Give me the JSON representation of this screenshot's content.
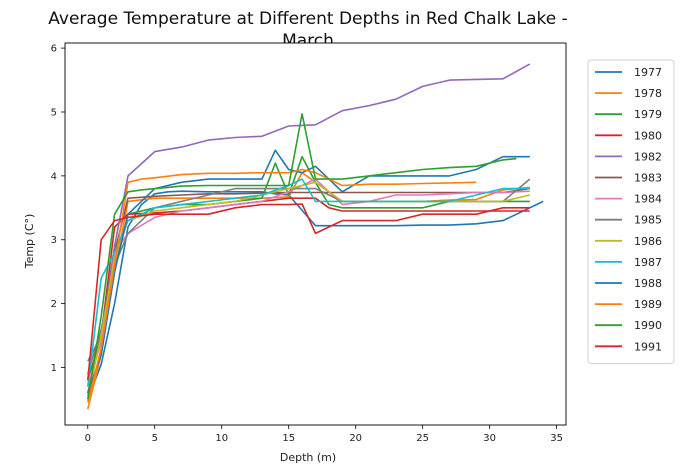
{
  "chart_data": {
    "type": "line",
    "title_line1": "Average Temperature at Different Depths in Red Chalk Lake -",
    "title_line2": "March",
    "xlabel": "Depth (m)",
    "ylabel": "Temp (C°)",
    "xlim": [
      -1.7,
      35.7
    ],
    "ylim": [
      0.1,
      6.08
    ],
    "xticks": [
      0,
      5,
      10,
      15,
      20,
      25,
      30,
      35
    ],
    "yticks": [
      1,
      2,
      3,
      4,
      5,
      6
    ],
    "grid": false,
    "legend_position": "outside-right",
    "series": [
      {
        "name": "1977",
        "color": "#1f77b4",
        "x": [
          0,
          1,
          2,
          3,
          4,
          5,
          6,
          7,
          9,
          11,
          13,
          14,
          15,
          17,
          18,
          19,
          21,
          23,
          25,
          27,
          29,
          31,
          33,
          34
        ],
        "y": [
          0.5,
          1.05,
          2.0,
          3.2,
          3.55,
          3.72,
          3.75,
          3.76,
          3.75,
          3.75,
          3.75,
          3.72,
          3.7,
          3.22,
          3.22,
          3.22,
          3.22,
          3.22,
          3.23,
          3.23,
          3.25,
          3.3,
          3.5,
          3.6
        ]
      },
      {
        "name": "1978",
        "color": "#ff7f0e",
        "x": [
          0,
          1,
          2,
          3,
          5,
          7,
          9,
          11,
          13,
          15,
          16,
          17,
          19,
          21,
          23,
          25,
          27,
          29,
          31,
          33
        ],
        "y": [
          0.35,
          1.2,
          2.5,
          3.6,
          3.65,
          3.65,
          3.65,
          3.65,
          3.65,
          3.67,
          4.05,
          3.9,
          3.6,
          3.6,
          3.6,
          3.6,
          3.62,
          3.63,
          3.78,
          3.82
        ]
      },
      {
        "name": "1979",
        "color": "#2ca02c",
        "x": [
          0,
          1,
          2,
          3,
          4,
          5,
          7,
          9,
          11,
          13,
          14,
          15,
          16,
          17,
          18,
          19,
          21,
          23,
          25,
          27,
          29,
          31,
          33
        ],
        "y": [
          0.55,
          1.5,
          2.5,
          3.4,
          3.45,
          3.5,
          3.55,
          3.55,
          3.6,
          3.65,
          4.2,
          3.7,
          4.3,
          3.9,
          3.55,
          3.5,
          3.5,
          3.5,
          3.5,
          3.6,
          3.6,
          3.6,
          3.6
        ]
      },
      {
        "name": "1980",
        "color": "#d62728",
        "x": [
          0,
          1,
          2,
          3,
          5,
          7,
          9,
          11,
          13,
          15,
          17,
          18,
          19,
          21,
          23,
          25,
          27,
          29,
          31,
          33
        ],
        "y": [
          0.6,
          1.5,
          3.2,
          3.4,
          3.42,
          3.45,
          3.5,
          3.55,
          3.6,
          3.65,
          3.65,
          3.5,
          3.45,
          3.45,
          3.45,
          3.45,
          3.45,
          3.45,
          3.45,
          3.45
        ]
      },
      {
        "name": "1982",
        "color": "#9467bd",
        "x": [
          0,
          1,
          2,
          3,
          5,
          7,
          9,
          11,
          13,
          15,
          17,
          19,
          21,
          23,
          25,
          27,
          29,
          31,
          33
        ],
        "y": [
          1.1,
          1.5,
          2.9,
          4.0,
          4.38,
          4.45,
          4.56,
          4.6,
          4.62,
          4.78,
          4.8,
          5.02,
          5.1,
          5.2,
          5.4,
          5.5,
          5.51,
          5.52,
          5.75
        ]
      },
      {
        "name": "1983",
        "color": "#8c564b",
        "x": [
          0,
          1,
          2,
          3,
          5,
          7,
          9,
          11,
          13,
          15,
          17,
          19,
          21,
          23,
          25,
          27,
          29,
          31,
          33
        ],
        "y": [
          0.8,
          1.5,
          2.8,
          3.65,
          3.68,
          3.7,
          3.72,
          3.72,
          3.73,
          3.74,
          3.74,
          3.74,
          3.74,
          3.74,
          3.74,
          3.74,
          3.74,
          3.74,
          3.8
        ]
      },
      {
        "name": "1984",
        "color": "#e377c2",
        "x": [
          0,
          1,
          2,
          3,
          5,
          7,
          9,
          11,
          13,
          15,
          17,
          19,
          21,
          23,
          25,
          27,
          29,
          31,
          33
        ],
        "y": [
          0.7,
          1.4,
          2.8,
          3.1,
          3.35,
          3.45,
          3.5,
          3.55,
          3.6,
          3.75,
          3.95,
          3.55,
          3.6,
          3.7,
          3.7,
          3.72,
          3.74,
          3.74,
          3.76
        ]
      },
      {
        "name": "1985",
        "color": "#7f7f7f",
        "x": [
          0,
          1,
          2,
          3,
          5,
          7,
          9,
          11,
          13,
          15,
          17,
          19,
          21,
          23,
          25,
          27,
          29,
          31,
          33
        ],
        "y": [
          0.9,
          1.6,
          2.6,
          3.1,
          3.5,
          3.6,
          3.7,
          3.8,
          3.8,
          3.8,
          3.8,
          3.6,
          3.6,
          3.6,
          3.6,
          3.6,
          3.6,
          3.6,
          3.95
        ]
      },
      {
        "name": "1986",
        "color": "#bcbd22",
        "x": [
          0,
          1,
          2,
          3,
          5,
          7,
          9,
          11,
          13,
          15,
          17,
          19,
          21,
          23,
          25,
          27,
          29,
          31,
          33
        ],
        "y": [
          0.55,
          1.5,
          2.7,
          3.3,
          3.45,
          3.5,
          3.55,
          3.6,
          3.7,
          3.8,
          3.9,
          3.6,
          3.6,
          3.6,
          3.6,
          3.6,
          3.6,
          3.6,
          3.7
        ]
      },
      {
        "name": "1987",
        "color": "#17becf",
        "x": [
          0,
          1,
          2,
          3,
          5,
          7,
          9,
          11,
          13,
          15,
          16,
          17,
          18,
          19,
          21,
          23,
          25,
          27,
          29,
          31,
          33
        ],
        "y": [
          0.7,
          2.4,
          2.8,
          3.3,
          3.5,
          3.55,
          3.6,
          3.65,
          3.7,
          3.85,
          3.95,
          3.6,
          3.6,
          3.6,
          3.6,
          3.6,
          3.6,
          3.6,
          3.7,
          3.8,
          3.8
        ]
      },
      {
        "name": "1988",
        "color": "#1f77b4",
        "x": [
          0,
          1,
          2,
          3,
          5,
          7,
          9,
          11,
          13,
          14,
          15,
          16,
          17,
          19,
          21,
          23,
          25,
          27,
          29,
          31,
          33
        ],
        "y": [
          0.6,
          1.2,
          2.5,
          3.4,
          3.8,
          3.9,
          3.95,
          3.95,
          3.95,
          4.4,
          4.1,
          4.05,
          4.15,
          3.75,
          4.0,
          4.0,
          4.0,
          4.0,
          4.1,
          4.3,
          4.3
        ]
      },
      {
        "name": "1989",
        "color": "#ff7f0e",
        "x": [
          0,
          1,
          2,
          3,
          4,
          5,
          7,
          9,
          11,
          13,
          15,
          16,
          17,
          19,
          21,
          23,
          25,
          27,
          29
        ],
        "y": [
          0.45,
          1.3,
          2.6,
          3.9,
          3.95,
          3.97,
          4.02,
          4.04,
          4.04,
          4.05,
          4.05,
          4.1,
          4.05,
          3.85,
          3.87,
          3.87,
          3.88,
          3.89,
          3.9
        ]
      },
      {
        "name": "1990",
        "color": "#2ca02c",
        "x": [
          0,
          1,
          2,
          3,
          4,
          5,
          6,
          7,
          9,
          11,
          13,
          15,
          16,
          17,
          19,
          21,
          23,
          25,
          27,
          29,
          31,
          32
        ],
        "y": [
          0.5,
          1.8,
          3.4,
          3.75,
          3.78,
          3.8,
          3.82,
          3.84,
          3.85,
          3.85,
          3.85,
          3.85,
          4.97,
          3.95,
          3.95,
          4.0,
          4.05,
          4.1,
          4.13,
          4.15,
          4.25,
          4.27
        ]
      },
      {
        "name": "1991",
        "color": "#d62728",
        "x": [
          0,
          1,
          2,
          3,
          5,
          7,
          9,
          11,
          13,
          15,
          16,
          17,
          18,
          19,
          21,
          23,
          25,
          27,
          29,
          31,
          33
        ],
        "y": [
          0.8,
          3.0,
          3.3,
          3.35,
          3.4,
          3.4,
          3.4,
          3.5,
          3.55,
          3.55,
          3.56,
          3.1,
          3.2,
          3.3,
          3.3,
          3.3,
          3.4,
          3.4,
          3.4,
          3.5,
          3.5
        ]
      }
    ]
  }
}
